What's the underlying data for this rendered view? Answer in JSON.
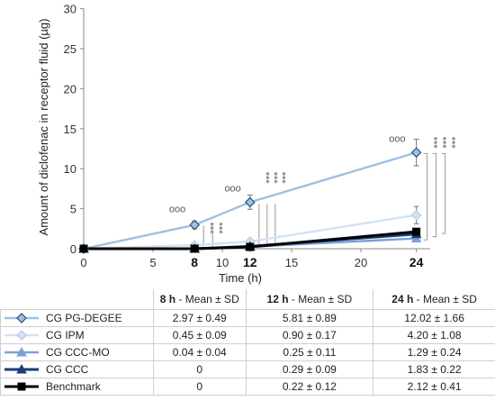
{
  "chart_data": {
    "type": "line",
    "xlabel": "Time (h)",
    "ylabel": "Amount of diclofenac in receptor fluid (µg)",
    "xlim": [
      0,
      25
    ],
    "ylim": [
      0,
      30
    ],
    "xticks": [
      "0",
      "5",
      "8",
      "10",
      "12",
      "15",
      "20",
      "24"
    ],
    "xticks_bold": [
      "8",
      "12",
      "24"
    ],
    "yticks": [
      "0",
      "5",
      "10",
      "15",
      "20",
      "25",
      "30"
    ],
    "grid": false,
    "x": [
      0,
      8,
      12,
      24
    ],
    "series": [
      {
        "name": "CG PG-DEGEE",
        "color": "#9dc0e3",
        "marker": "diamond",
        "values": [
          0,
          2.97,
          5.81,
          12.02
        ],
        "sd": [
          0,
          0.49,
          0.89,
          1.66
        ]
      },
      {
        "name": "CG IPM",
        "color": "#d3e2f4",
        "marker": "diamond",
        "values": [
          0,
          0.45,
          0.9,
          4.2
        ],
        "sd": [
          0,
          0.09,
          0.17,
          1.08
        ]
      },
      {
        "name": "CG CCC-MO",
        "color": "#7aa2d6",
        "marker": "triangle",
        "values": [
          0,
          0.04,
          0.25,
          1.29
        ],
        "sd": [
          0,
          0.04,
          0.11,
          0.24
        ]
      },
      {
        "name": "CG CCC",
        "color": "#1c3f73",
        "marker": "triangle",
        "values": [
          0,
          0,
          0.29,
          1.83
        ],
        "sd": [
          0,
          0,
          0.09,
          0.22
        ]
      },
      {
        "name": "Benchmark",
        "color": "#000000",
        "marker": "square",
        "values": [
          0,
          0,
          0.22,
          2.12
        ],
        "sd": [
          0,
          0,
          0.12,
          0.41
        ]
      }
    ],
    "annotations": {
      "circles": "ooo",
      "stars": "***"
    }
  },
  "table": {
    "headers": [
      {
        "time": "8 h",
        "rest": " - Mean ± SD"
      },
      {
        "time": "12 h",
        "rest": " - Mean ± SD"
      },
      {
        "time": "24 h",
        "rest": " - Mean ± SD"
      }
    ],
    "rows": [
      {
        "label": "CG PG-DEGEE",
        "v": [
          "2.97 ± 0.49",
          "5.81 ± 0.89",
          "12.02 ± 1.66"
        ]
      },
      {
        "label": "CG IPM",
        "v": [
          "0.45 ± 0.09",
          "0.90 ± 0.17",
          "4.20 ± 1.08"
        ]
      },
      {
        "label": "CG CCC-MO",
        "v": [
          "0.04 ± 0.04",
          "0.25 ± 0.11",
          "1.29 ± 0.24"
        ]
      },
      {
        "label": "CG CCC",
        "v": [
          "0",
          "0.29 ± 0.09",
          "1.83 ± 0.22"
        ]
      },
      {
        "label": "Benchmark",
        "v": [
          "0",
          "0.22 ± 0.12",
          "2.12 ± 0.41"
        ]
      }
    ]
  }
}
